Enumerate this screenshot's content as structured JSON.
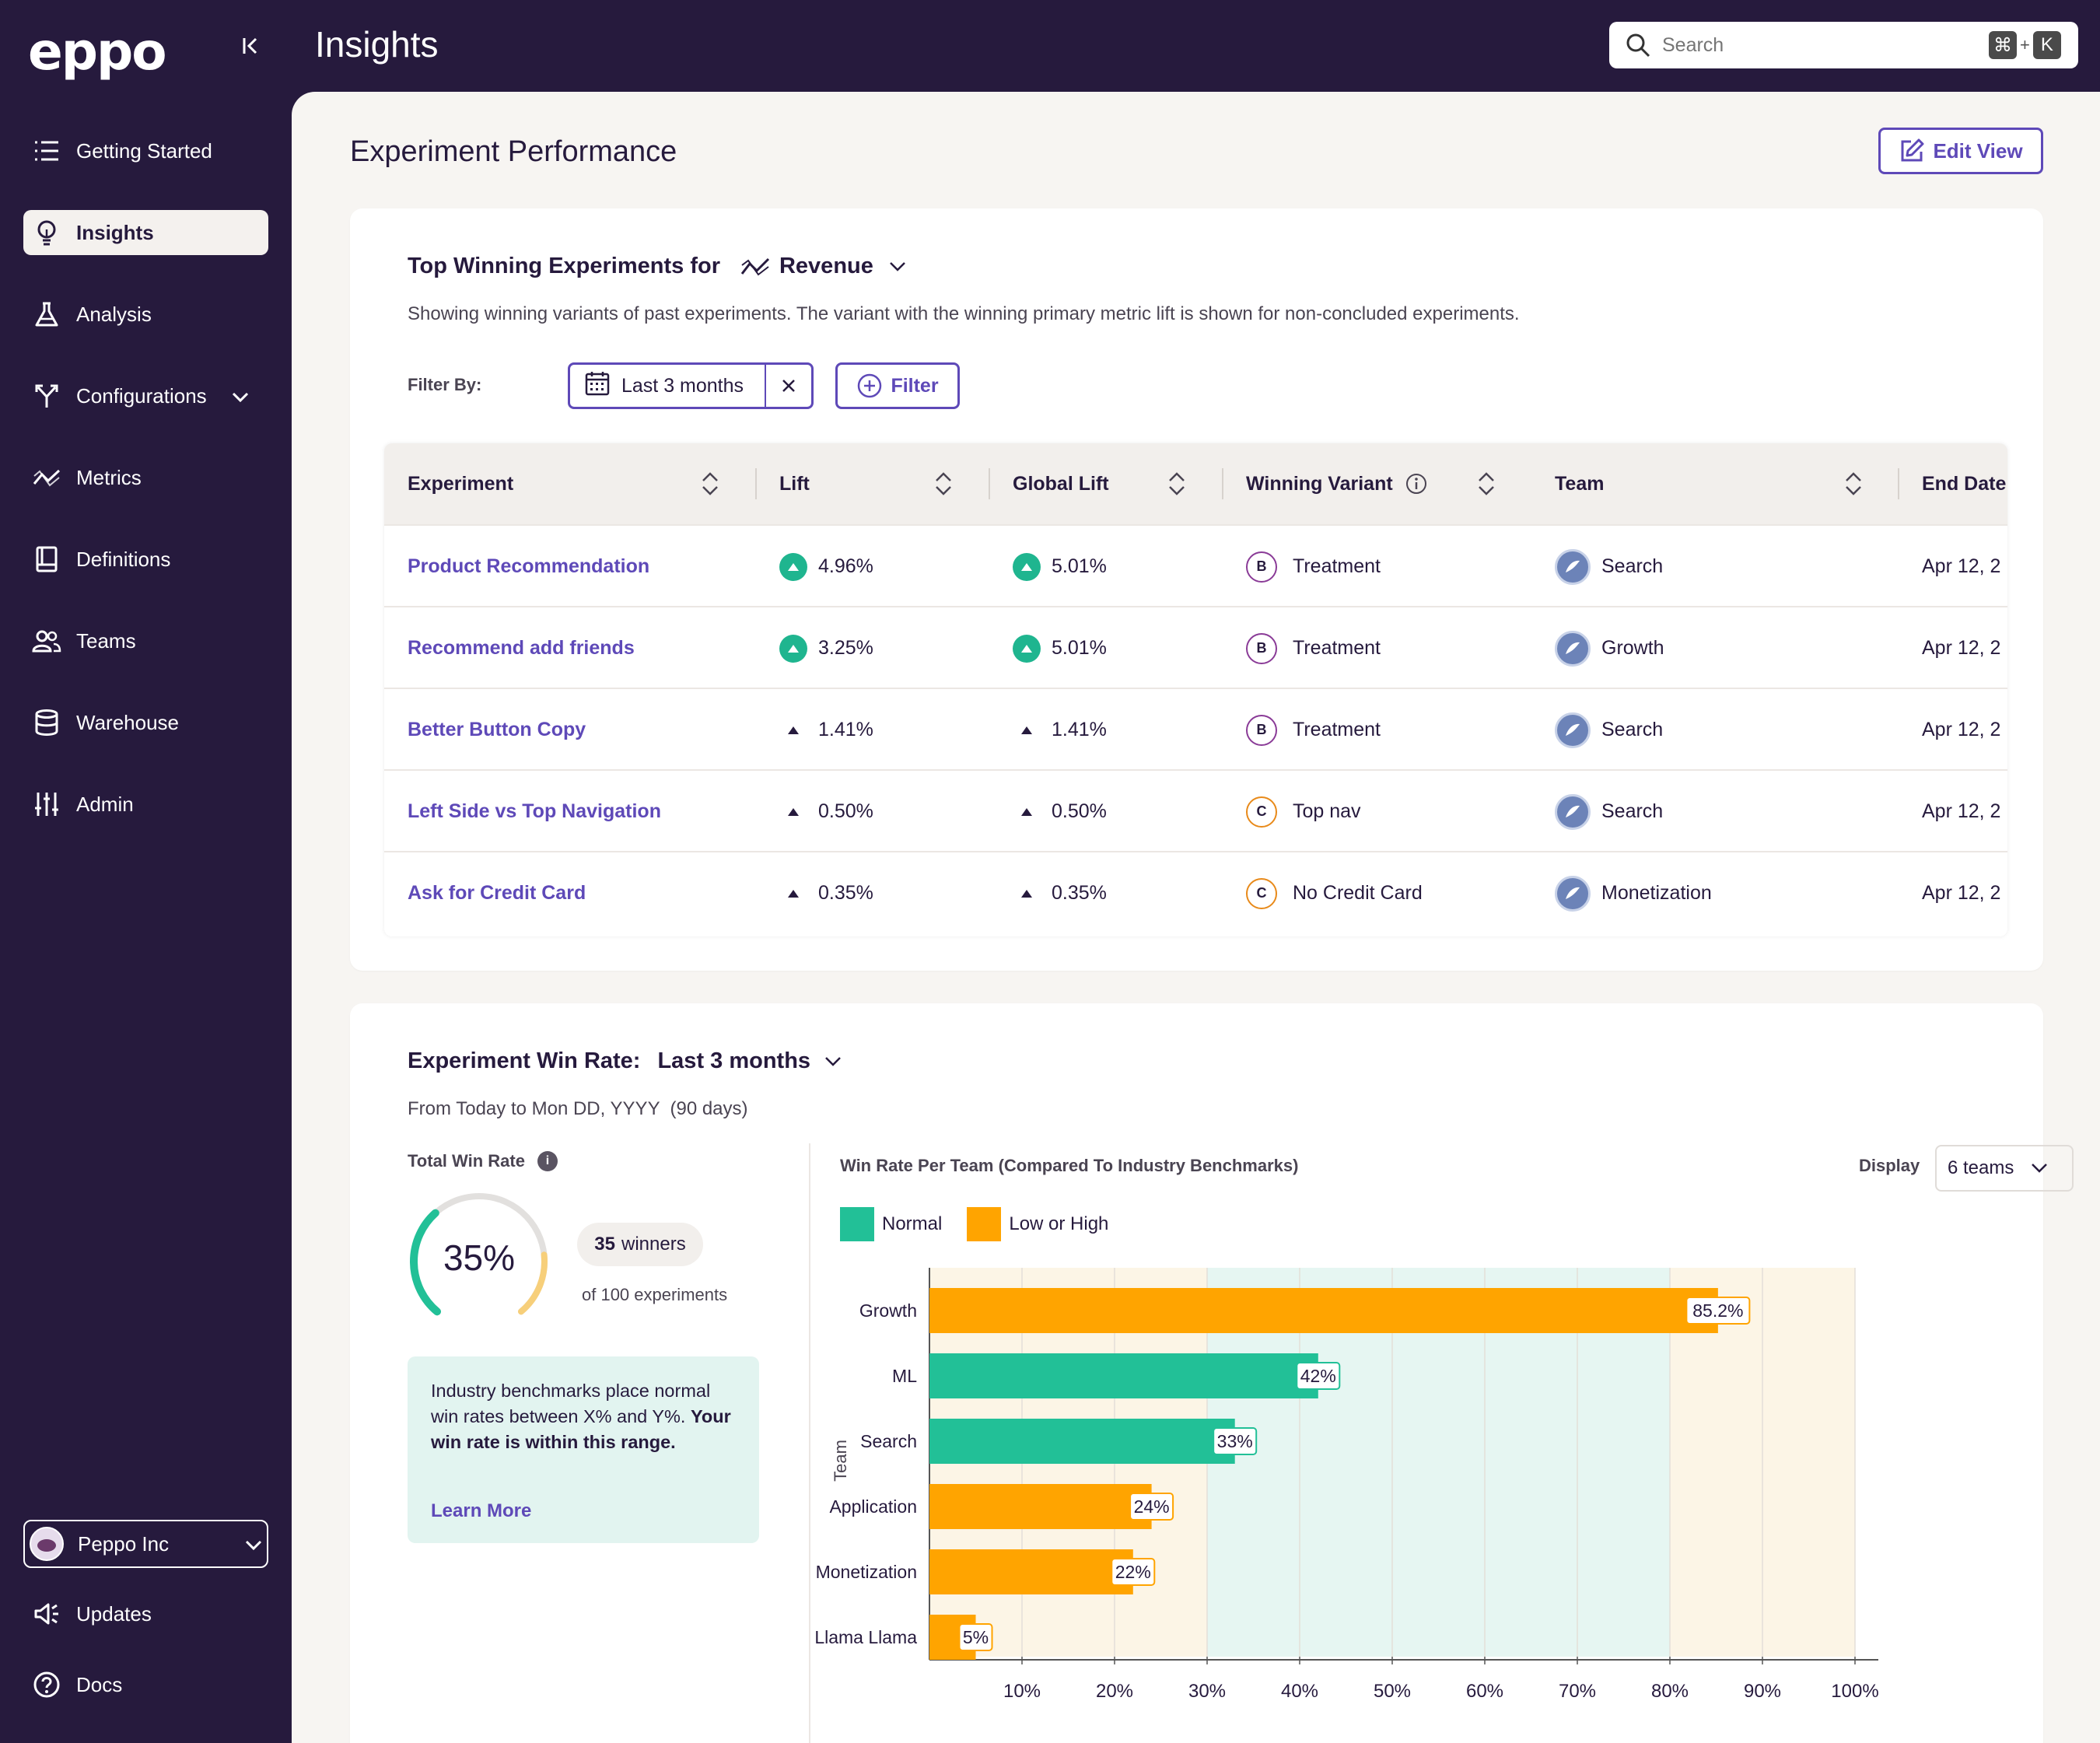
{
  "app": {
    "logo": "eppo",
    "page_title": "Insights"
  },
  "search": {
    "placeholder": "Search",
    "shortcut_mod": "⌘",
    "shortcut_plus": "+",
    "shortcut_key": "K"
  },
  "sidebar": {
    "items": [
      {
        "label": "Getting Started",
        "icon": "list-icon"
      },
      {
        "label": "Insights",
        "icon": "lightbulb-icon",
        "active": true
      },
      {
        "label": "Analysis",
        "icon": "flask-icon"
      },
      {
        "label": "Configurations",
        "icon": "branch-icon"
      },
      {
        "label": "Metrics",
        "icon": "trend-icon"
      },
      {
        "label": "Definitions",
        "icon": "book-icon"
      },
      {
        "label": "Teams",
        "icon": "users-icon"
      },
      {
        "label": "Warehouse",
        "icon": "database-icon"
      },
      {
        "label": "Admin",
        "icon": "sliders-icon"
      }
    ],
    "org": "Peppo Inc",
    "updates": "Updates",
    "docs": "Docs"
  },
  "main": {
    "title": "Experiment Performance",
    "edit_view": "Edit View"
  },
  "top_winning": {
    "title": "Top Winning Experiments for",
    "metric": "Revenue",
    "description": "Showing winning variants of past experiments. The variant with the winning primary metric lift is shown for non-concluded experiments.",
    "filter_by": "Filter By:",
    "date_chip": "Last 3 months",
    "filter_button": "Filter",
    "columns": [
      "Experiment",
      "Lift",
      "Global Lift",
      "Winning Variant",
      "Team",
      "End Date"
    ],
    "rows": [
      {
        "experiment": "Product Recommendation",
        "lift": "4.96%",
        "global_lift": "5.01%",
        "significant": true,
        "variant_letter": "B",
        "variant": "Treatment",
        "team": "Search",
        "end_date": "Apr 12, 2"
      },
      {
        "experiment": "Recommend add friends",
        "lift": "3.25%",
        "global_lift": "5.01%",
        "significant": true,
        "variant_letter": "B",
        "variant": "Treatment",
        "team": "Growth",
        "end_date": "Apr 12, 2"
      },
      {
        "experiment": "Better Button Copy",
        "lift": "1.41%",
        "global_lift": "1.41%",
        "significant": false,
        "variant_letter": "B",
        "variant": "Treatment",
        "team": "Search",
        "end_date": "Apr 12, 2"
      },
      {
        "experiment": "Left Side vs Top Navigation",
        "lift": "0.50%",
        "global_lift": "0.50%",
        "significant": false,
        "variant_letter": "C",
        "variant": "Top nav",
        "team": "Search",
        "end_date": "Apr 12, 2"
      },
      {
        "experiment": "Ask for Credit Card",
        "lift": "0.35%",
        "global_lift": "0.35%",
        "significant": false,
        "variant_letter": "C",
        "variant": "No Credit Card",
        "team": "Monetization",
        "end_date": "Apr 12, 2"
      }
    ]
  },
  "win_rate": {
    "title": "Experiment Win Rate:",
    "period": "Last 3 months",
    "range": "From Today to Mon DD, YYYY  (90 days)",
    "total_label": "Total Win Rate",
    "total_value": "35%",
    "total_fraction": 0.35,
    "winners_count": "35",
    "winners_word": "winners",
    "of_experiments": "of 100 experiments",
    "benchmark_text": "Industry benchmarks place normal win rates between X% and Y%.",
    "benchmark_bold": "Your win rate is within this range.",
    "learn_more": "Learn More",
    "chart_title": "Win Rate Per Team (Compared To Industry Benchmarks)",
    "display_label": "Display",
    "display_value": "6 teams",
    "colors": {
      "normal": "#22c097",
      "low_high": "#ffa400",
      "normal_band": "#e6f6f2",
      "outer_band": "#fcf5e6"
    }
  },
  "chart_data": {
    "type": "bar",
    "orientation": "horizontal",
    "title": "Win Rate Per Team (Compared To Industry Benchmarks)",
    "ylabel": "Team",
    "xlabel": "",
    "categories": [
      "Growth",
      "ML",
      "Search",
      "Application",
      "Monetization",
      "Llama Llama"
    ],
    "values": [
      85.2,
      42,
      33,
      24,
      22,
      5
    ],
    "value_labels": [
      "85.2%",
      "42%",
      "33%",
      "24%",
      "22%",
      "5%"
    ],
    "status": [
      "Low or High",
      "Normal",
      "Normal",
      "Low or High",
      "Low or High",
      "Low or High"
    ],
    "legend": [
      "Normal",
      "Low or High"
    ],
    "normal_range": [
      30,
      80
    ],
    "xlim": [
      0,
      100
    ],
    "xticks": [
      10,
      20,
      30,
      40,
      50,
      60,
      70,
      80,
      90,
      100
    ],
    "xtick_labels": [
      "10%",
      "20%",
      "30%",
      "40%",
      "50%",
      "60%",
      "70%",
      "80%",
      "90%",
      "100%"
    ],
    "grid": true
  }
}
